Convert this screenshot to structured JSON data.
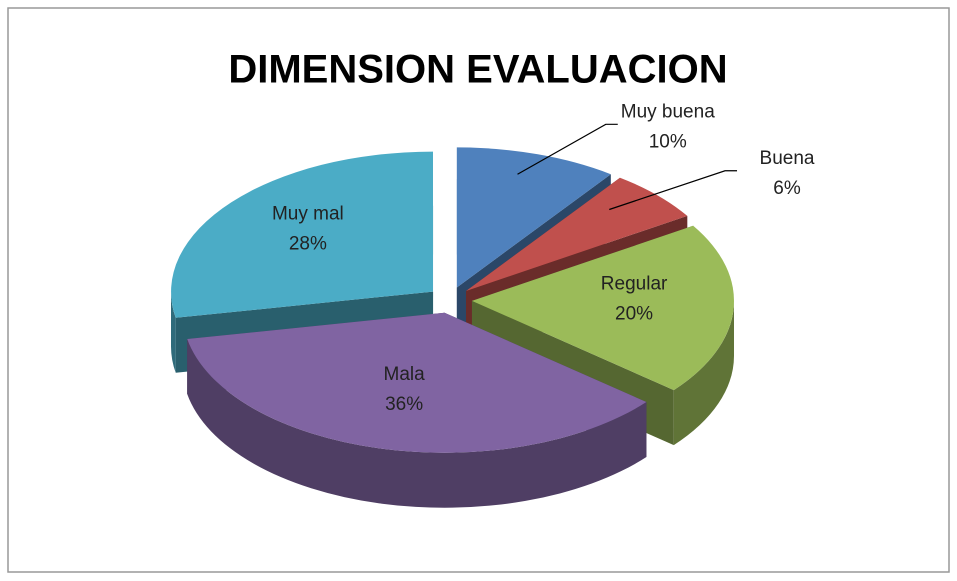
{
  "chart_data": {
    "type": "pie",
    "title": "DIMENSION EVALUACION",
    "categories": [
      "Muy buena",
      "Buena",
      "Regular",
      "Mala",
      "Muy mal"
    ],
    "values": [
      10,
      6,
      20,
      36,
      28
    ],
    "value_labels": [
      "10%",
      "6%",
      "20%",
      "36%",
      "28%"
    ],
    "colors": [
      "#4f81bd",
      "#c0504d",
      "#9bbb59",
      "#8064a2",
      "#4bacc6"
    ]
  }
}
